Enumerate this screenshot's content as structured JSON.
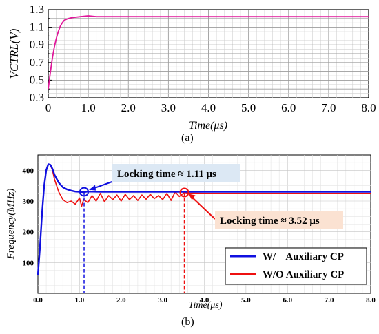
{
  "chart_data": [
    {
      "type": "line",
      "panel_label": "(a)",
      "xlabel": "Time(μs)",
      "ylabel": "VCTRL(V)",
      "xlim": [
        0,
        8
      ],
      "ylim": [
        0.3,
        1.3
      ],
      "xticks": [
        "0",
        "1.0",
        "2.0",
        "3.0",
        "4.0",
        "5.0",
        "6.0",
        "7.0",
        "8.0"
      ],
      "yticks": [
        "0.3",
        "0.5",
        "0.7",
        "0.9",
        "1.1",
        "1.3"
      ],
      "yticks_minor": [
        "0.4",
        "0.6",
        "0.8",
        "1.0",
        "1.2"
      ],
      "grid": true,
      "series": [
        {
          "color": "#e0179a",
          "x": [
            0,
            0.05,
            0.1,
            0.15,
            0.2,
            0.25,
            0.3,
            0.35,
            0.4,
            0.5,
            0.6,
            0.8,
            1.0,
            1.2,
            2,
            3,
            4,
            5,
            6,
            7,
            8
          ],
          "y": [
            0.4,
            0.58,
            0.74,
            0.87,
            0.97,
            1.05,
            1.11,
            1.15,
            1.18,
            1.2,
            1.21,
            1.22,
            1.23,
            1.22,
            1.22,
            1.22,
            1.22,
            1.22,
            1.22,
            1.22,
            1.22
          ]
        }
      ]
    },
    {
      "type": "line",
      "panel_label": "(b)",
      "xlabel": "Time(μs)",
      "ylabel": "Frequency(MHz)",
      "xlim": [
        0,
        8
      ],
      "ylim": [
        0,
        450
      ],
      "xticks": [
        "0.0",
        "1.0",
        "2.0",
        "3.0",
        "4.0",
        "5.0",
        "6.0",
        "7.0",
        "8.0"
      ],
      "yticks": [
        "100",
        "200",
        "300",
        "400"
      ],
      "grid": true,
      "legend_position": "bottom-right",
      "series": [
        {
          "name": "W/    Auxiliary CP",
          "color": "#1010e0",
          "x": [
            0,
            0.05,
            0.1,
            0.15,
            0.2,
            0.25,
            0.3,
            0.35,
            0.4,
            0.5,
            0.6,
            0.7,
            0.8,
            0.9,
            1.0,
            1.1,
            1.2,
            1.5,
            2,
            3,
            4,
            5,
            6,
            7,
            8
          ],
          "y": [
            60,
            150,
            260,
            350,
            400,
            420,
            418,
            405,
            385,
            360,
            345,
            338,
            334,
            331,
            330,
            329,
            331,
            330,
            330,
            330,
            330,
            330,
            330,
            330,
            330
          ]
        },
        {
          "name": "W/O Auxiliary CP",
          "color": "#ee1010",
          "x": [
            0,
            0.05,
            0.1,
            0.15,
            0.2,
            0.25,
            0.3,
            0.35,
            0.4,
            0.5,
            0.6,
            0.7,
            0.8,
            0.9,
            1.0,
            1.05,
            1.1,
            1.2,
            1.3,
            1.4,
            1.5,
            1.6,
            1.7,
            1.8,
            1.9,
            2.0,
            2.1,
            2.2,
            2.3,
            2.4,
            2.5,
            2.6,
            2.7,
            2.8,
            2.9,
            3.0,
            3.1,
            3.2,
            3.3,
            3.4,
            3.52,
            3.6,
            4,
            5,
            6,
            7,
            8
          ],
          "y": [
            60,
            150,
            260,
            350,
            400,
            420,
            418,
            400,
            370,
            330,
            305,
            295,
            300,
            290,
            310,
            283,
            305,
            295,
            318,
            300,
            325,
            298,
            318,
            305,
            320,
            300,
            322,
            305,
            318,
            302,
            320,
            306,
            322,
            308,
            318,
            305,
            325,
            302,
            330,
            315,
            328,
            326,
            325,
            325,
            325,
            325,
            325
          ]
        }
      ],
      "annotations": [
        {
          "text": "Locking time ≈ 1.11 μs",
          "x": 1.11,
          "y": 330,
          "color": "#1010e0",
          "box_fill": "#dce8f4"
        },
        {
          "text": "Locking time ≈ 3.52 μs",
          "x": 3.52,
          "y": 328,
          "color": "#ee1010",
          "box_fill": "#fbe2d2"
        }
      ]
    }
  ]
}
